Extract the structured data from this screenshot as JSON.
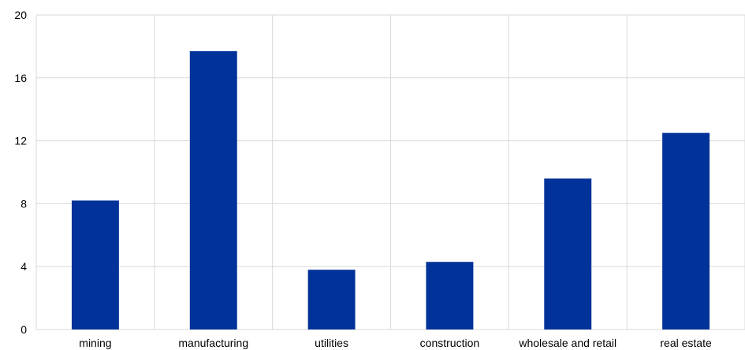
{
  "chart_data": {
    "type": "bar",
    "title": "",
    "xlabel": "",
    "ylabel": "",
    "categories": [
      "mining",
      "manufacturing",
      "utilities",
      "construction",
      "wholesale and retail",
      "real estate"
    ],
    "values": [
      8.2,
      17.7,
      3.8,
      4.3,
      9.6,
      12.5
    ],
    "ylim": [
      0,
      20
    ],
    "yticks": [
      "0",
      "4",
      "8",
      "12",
      "16",
      "20"
    ],
    "grid": true,
    "bar_color": "#003299",
    "grid_color": "#d9d9d9"
  }
}
